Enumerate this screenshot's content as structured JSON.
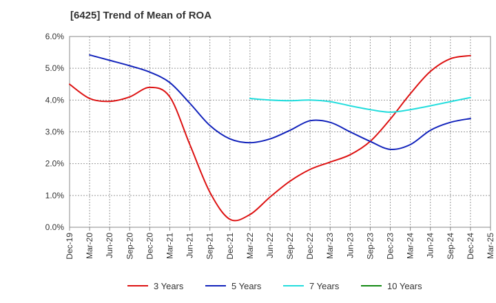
{
  "chart_data": {
    "type": "line",
    "title": "[6425]  Trend of Mean of ROA",
    "xlabel": "",
    "ylabel": "",
    "x_ticks": [
      "Dec-19",
      "Mar-20",
      "Jun-20",
      "Sep-20",
      "Dec-20",
      "Mar-21",
      "Jun-21",
      "Sep-21",
      "Dec-21",
      "Mar-22",
      "Jun-22",
      "Sep-22",
      "Dec-22",
      "Mar-23",
      "Jun-23",
      "Sep-23",
      "Dec-23",
      "Mar-24",
      "Jun-24",
      "Sep-24",
      "Dec-24",
      "Mar-25"
    ],
    "y_ticks": [
      "0.0%",
      "1.0%",
      "2.0%",
      "3.0%",
      "4.0%",
      "5.0%",
      "6.0%"
    ],
    "ylim": [
      0,
      6
    ],
    "grid": true,
    "legend_position": "bottom",
    "series": [
      {
        "name": "3 Years",
        "color": "#dd1111",
        "points": [
          [
            0,
            4.5
          ],
          [
            1,
            4.05
          ],
          [
            2,
            3.96
          ],
          [
            3,
            4.1
          ],
          [
            4,
            4.4
          ],
          [
            5,
            4.1
          ],
          [
            6,
            2.6
          ],
          [
            7,
            1.1
          ],
          [
            8,
            0.25
          ],
          [
            9,
            0.4
          ],
          [
            10,
            0.95
          ],
          [
            11,
            1.45
          ],
          [
            12,
            1.82
          ],
          [
            13,
            2.05
          ],
          [
            14,
            2.28
          ],
          [
            15,
            2.7
          ],
          [
            16,
            3.4
          ],
          [
            17,
            4.2
          ],
          [
            18,
            4.9
          ],
          [
            19,
            5.3
          ],
          [
            20,
            5.4
          ]
        ]
      },
      {
        "name": "5 Years",
        "color": "#1122bb",
        "points": [
          [
            1,
            5.42
          ],
          [
            2,
            5.25
          ],
          [
            3,
            5.08
          ],
          [
            4,
            4.88
          ],
          [
            5,
            4.55
          ],
          [
            6,
            3.9
          ],
          [
            7,
            3.2
          ],
          [
            8,
            2.78
          ],
          [
            9,
            2.66
          ],
          [
            10,
            2.78
          ],
          [
            11,
            3.05
          ],
          [
            12,
            3.35
          ],
          [
            13,
            3.3
          ],
          [
            14,
            3.0
          ],
          [
            15,
            2.7
          ],
          [
            16,
            2.45
          ],
          [
            17,
            2.6
          ],
          [
            18,
            3.05
          ],
          [
            19,
            3.3
          ],
          [
            20,
            3.42
          ]
        ]
      },
      {
        "name": "7 Years",
        "color": "#22dddd",
        "points": [
          [
            9,
            4.05
          ],
          [
            10,
            4.0
          ],
          [
            11,
            3.98
          ],
          [
            12,
            4.0
          ],
          [
            13,
            3.95
          ],
          [
            14,
            3.82
          ],
          [
            15,
            3.7
          ],
          [
            16,
            3.62
          ],
          [
            17,
            3.7
          ],
          [
            18,
            3.82
          ],
          [
            19,
            3.95
          ],
          [
            20,
            4.08
          ]
        ]
      },
      {
        "name": "10 Years",
        "color": "#118811",
        "points": []
      }
    ]
  }
}
